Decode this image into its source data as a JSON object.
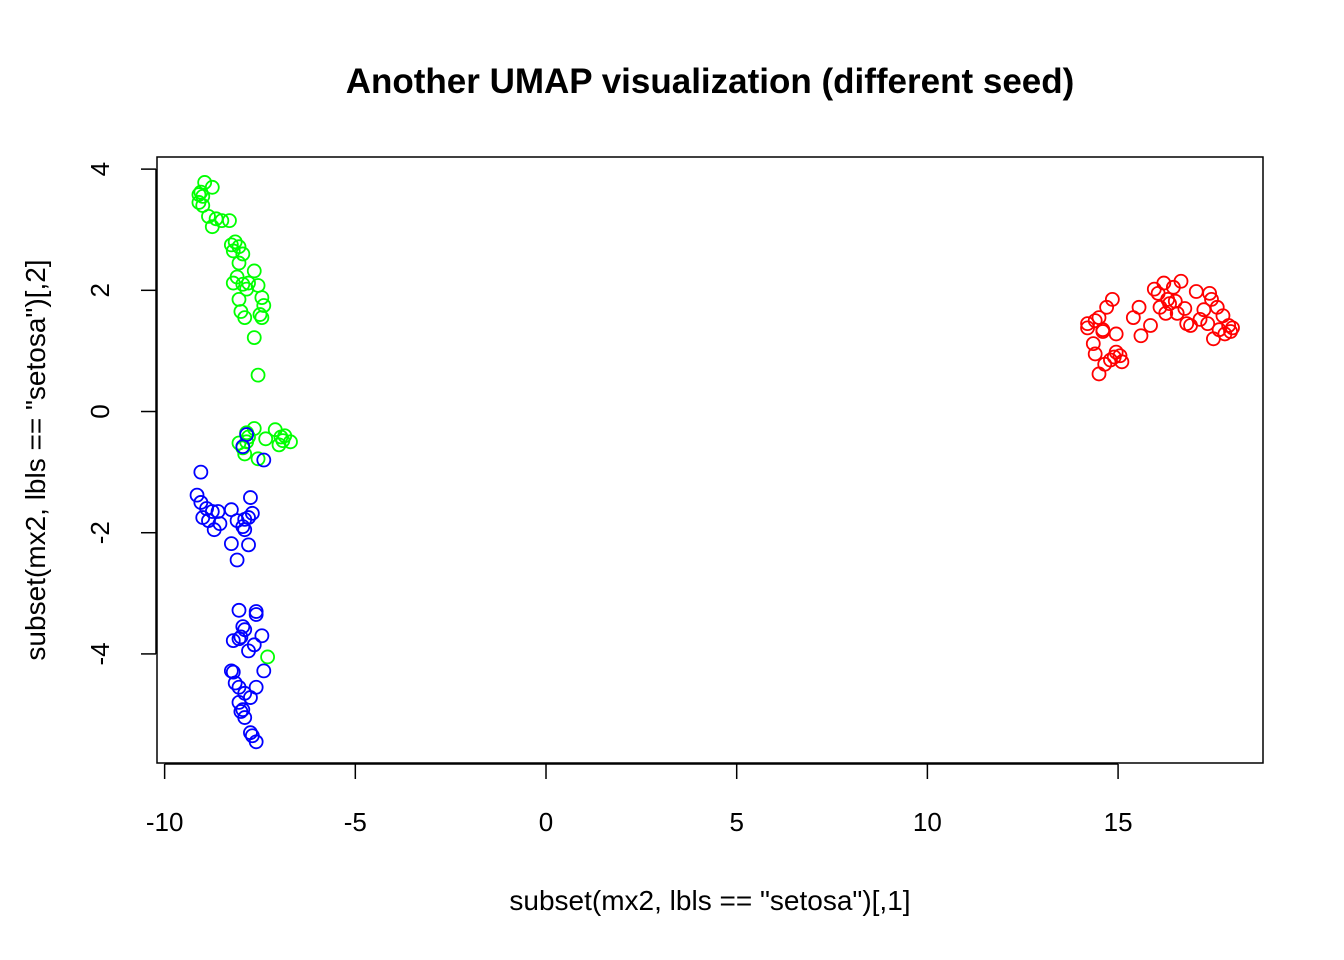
{
  "chart_data": {
    "type": "scatter",
    "title": "Another UMAP visualization (different seed)",
    "xlabel": "subset(mx2, lbls == \"setosa\")[,1]",
    "ylabel": "subset(mx2, lbls == \"setosa\")[,2]",
    "xlim": [
      -10.2,
      18.8
    ],
    "ylim": [
      -5.8,
      4.2
    ],
    "x_ticks": [
      -10,
      -5,
      0,
      5,
      10,
      15
    ],
    "y_ticks": [
      -4,
      -2,
      0,
      2,
      4
    ],
    "x_tick_labels": [
      "-10",
      "-5",
      "0",
      "5",
      "10",
      "15"
    ],
    "y_tick_labels": [
      "-4",
      "-2",
      "0",
      "2",
      "4"
    ],
    "grid": false,
    "marker": "open-circle",
    "series": [
      {
        "color": "#ff0000",
        "points": [
          [
            14.2,
            1.45
          ],
          [
            14.2,
            1.38
          ],
          [
            14.4,
            1.5
          ],
          [
            14.5,
            1.55
          ],
          [
            14.35,
            1.12
          ],
          [
            14.6,
            1.35
          ],
          [
            14.7,
            1.72
          ],
          [
            14.85,
            1.85
          ],
          [
            14.4,
            0.95
          ],
          [
            14.5,
            0.62
          ],
          [
            14.65,
            0.78
          ],
          [
            14.8,
            0.85
          ],
          [
            14.9,
            0.9
          ],
          [
            14.95,
            0.98
          ],
          [
            15.1,
            0.82
          ],
          [
            14.95,
            1.28
          ],
          [
            15.4,
            1.55
          ],
          [
            15.55,
            1.72
          ],
          [
            15.6,
            1.25
          ],
          [
            15.85,
            1.42
          ],
          [
            15.95,
            2.02
          ],
          [
            16.05,
            1.95
          ],
          [
            16.1,
            1.72
          ],
          [
            16.2,
            2.12
          ],
          [
            16.25,
            1.62
          ],
          [
            16.3,
            1.85
          ],
          [
            16.35,
            1.78
          ],
          [
            16.45,
            2.05
          ],
          [
            16.5,
            1.82
          ],
          [
            16.55,
            1.62
          ],
          [
            16.65,
            2.15
          ],
          [
            16.75,
            1.7
          ],
          [
            16.8,
            1.45
          ],
          [
            16.9,
            1.42
          ],
          [
            17.05,
            1.98
          ],
          [
            17.15,
            1.52
          ],
          [
            17.25,
            1.68
          ],
          [
            17.35,
            1.45
          ],
          [
            17.4,
            1.95
          ],
          [
            17.45,
            1.85
          ],
          [
            17.5,
            1.2
          ],
          [
            17.6,
            1.72
          ],
          [
            17.65,
            1.35
          ],
          [
            17.75,
            1.58
          ],
          [
            17.8,
            1.28
          ],
          [
            17.9,
            1.42
          ],
          [
            17.95,
            1.32
          ],
          [
            18.0,
            1.38
          ],
          [
            14.6,
            1.32
          ],
          [
            15.05,
            0.92
          ]
        ]
      },
      {
        "color": "#00ff00",
        "points": [
          [
            -9.1,
            3.58
          ],
          [
            -9.05,
            3.62
          ],
          [
            -8.95,
            3.78
          ],
          [
            -9.0,
            3.55
          ],
          [
            -9.1,
            3.45
          ],
          [
            -9.0,
            3.4
          ],
          [
            -8.75,
            3.7
          ],
          [
            -8.85,
            3.22
          ],
          [
            -8.65,
            3.18
          ],
          [
            -8.5,
            3.15
          ],
          [
            -8.75,
            3.05
          ],
          [
            -8.3,
            3.15
          ],
          [
            -8.25,
            2.75
          ],
          [
            -8.15,
            2.8
          ],
          [
            -8.05,
            2.72
          ],
          [
            -7.95,
            2.6
          ],
          [
            -8.2,
            2.65
          ],
          [
            -8.05,
            2.45
          ],
          [
            -7.65,
            2.32
          ],
          [
            -7.8,
            2.12
          ],
          [
            -8.1,
            2.22
          ],
          [
            -7.95,
            2.1
          ],
          [
            -7.55,
            2.08
          ],
          [
            -8.2,
            2.12
          ],
          [
            -7.85,
            2.02
          ],
          [
            -7.45,
            1.88
          ],
          [
            -7.4,
            1.75
          ],
          [
            -8.05,
            1.85
          ],
          [
            -7.5,
            1.6
          ],
          [
            -7.45,
            1.55
          ],
          [
            -8.0,
            1.65
          ],
          [
            -7.9,
            1.55
          ],
          [
            -7.65,
            1.22
          ],
          [
            -7.55,
            0.6
          ],
          [
            -7.85,
            -0.35
          ],
          [
            -7.65,
            -0.28
          ],
          [
            -7.1,
            -0.3
          ],
          [
            -6.95,
            -0.42
          ],
          [
            -6.85,
            -0.4
          ],
          [
            -6.7,
            -0.5
          ],
          [
            -7.35,
            -0.45
          ],
          [
            -7.0,
            -0.55
          ],
          [
            -8.05,
            -0.52
          ],
          [
            -7.95,
            -0.6
          ],
          [
            -7.9,
            -0.7
          ],
          [
            -7.55,
            -0.78
          ],
          [
            -7.3,
            -4.05
          ],
          [
            -7.8,
            -0.42
          ],
          [
            -7.85,
            -0.5
          ],
          [
            -6.9,
            -0.48
          ]
        ]
      },
      {
        "color": "#0000ff",
        "points": [
          [
            -7.85,
            -0.38
          ],
          [
            -7.95,
            -0.58
          ],
          [
            -7.4,
            -0.8
          ],
          [
            -9.05,
            -1.0
          ],
          [
            -9.15,
            -1.38
          ],
          [
            -9.05,
            -1.5
          ],
          [
            -8.9,
            -1.6
          ],
          [
            -9.0,
            -1.75
          ],
          [
            -8.85,
            -1.8
          ],
          [
            -8.75,
            -1.65
          ],
          [
            -8.6,
            -1.65
          ],
          [
            -8.7,
            -1.95
          ],
          [
            -8.55,
            -1.85
          ],
          [
            -8.25,
            -1.62
          ],
          [
            -8.1,
            -1.8
          ],
          [
            -7.9,
            -1.78
          ],
          [
            -7.8,
            -1.75
          ],
          [
            -7.95,
            -1.9
          ],
          [
            -7.9,
            -1.95
          ],
          [
            -7.7,
            -1.68
          ],
          [
            -7.75,
            -1.42
          ],
          [
            -8.25,
            -2.18
          ],
          [
            -7.8,
            -2.2
          ],
          [
            -8.1,
            -2.45
          ],
          [
            -8.05,
            -3.28
          ],
          [
            -7.6,
            -3.3
          ],
          [
            -7.6,
            -3.35
          ],
          [
            -7.95,
            -3.55
          ],
          [
            -7.9,
            -3.6
          ],
          [
            -7.45,
            -3.7
          ],
          [
            -8.05,
            -3.75
          ],
          [
            -8.0,
            -3.72
          ],
          [
            -8.2,
            -3.78
          ],
          [
            -7.65,
            -3.85
          ],
          [
            -7.8,
            -3.95
          ],
          [
            -7.4,
            -4.28
          ],
          [
            -8.25,
            -4.28
          ],
          [
            -8.2,
            -4.3
          ],
          [
            -7.6,
            -4.55
          ],
          [
            -8.05,
            -4.55
          ],
          [
            -8.15,
            -4.48
          ],
          [
            -7.9,
            -4.65
          ],
          [
            -7.75,
            -4.72
          ],
          [
            -8.05,
            -4.8
          ],
          [
            -7.95,
            -4.92
          ],
          [
            -8.0,
            -4.95
          ],
          [
            -7.9,
            -5.05
          ],
          [
            -7.75,
            -5.3
          ],
          [
            -7.7,
            -5.35
          ],
          [
            -7.6,
            -5.45
          ]
        ]
      }
    ]
  }
}
